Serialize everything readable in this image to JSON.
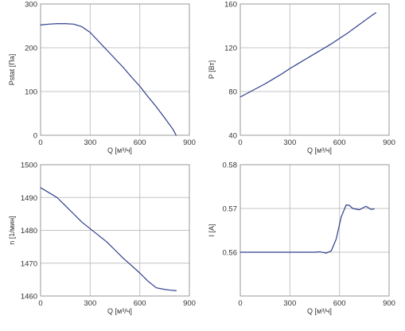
{
  "chart_data": [
    {
      "type": "line",
      "xlabel": "Q [м³/ч]",
      "ylabel": "Pstat [Па]",
      "xlim": [
        0,
        900
      ],
      "ylim": [
        0,
        300
      ],
      "xticks": [
        "0",
        "300",
        "600",
        "900"
      ],
      "yticks": [
        "0",
        "100",
        "200",
        "300"
      ],
      "grid": true,
      "color": "#2f3d8c",
      "series": [
        {
          "x": [
            0,
            50,
            100,
            150,
            200,
            250,
            300,
            350,
            400,
            450,
            500,
            550,
            600,
            650,
            700,
            750,
            800,
            820
          ],
          "y": [
            252,
            254,
            255,
            255,
            254,
            248,
            235,
            215,
            195,
            175,
            155,
            133,
            112,
            88,
            65,
            40,
            14,
            0
          ]
        }
      ]
    },
    {
      "type": "line",
      "xlabel": "Q [м³/ч]",
      "ylabel": "P [Вт]",
      "xlim": [
        0,
        900
      ],
      "ylim": [
        40,
        160
      ],
      "xticks": [
        "0",
        "300",
        "600",
        "900"
      ],
      "yticks": [
        "40",
        "80",
        "120",
        "160"
      ],
      "grid": true,
      "color": "#2f3d8c",
      "series": [
        {
          "x": [
            0,
            50,
            100,
            150,
            200,
            250,
            300,
            350,
            400,
            450,
            500,
            550,
            600,
            650,
            700,
            750,
            800,
            820
          ],
          "y": [
            75,
            79,
            83,
            87,
            91.5,
            96,
            101,
            105.5,
            110,
            114.5,
            119,
            123.5,
            128.5,
            133.5,
            139,
            144.5,
            150,
            152
          ]
        }
      ]
    },
    {
      "type": "line",
      "xlabel": "Q [м³/ч]",
      "ylabel": "n [1/мин]",
      "xlim": [
        0,
        900
      ],
      "ylim": [
        1460,
        1500
      ],
      "xticks": [
        "0",
        "300",
        "600",
        "900"
      ],
      "yticks": [
        "1460",
        "1470",
        "1480",
        "1490",
        "1500"
      ],
      "grid": true,
      "color": "#2f3d8c",
      "series": [
        {
          "x": [
            0,
            50,
            100,
            150,
            200,
            250,
            300,
            350,
            400,
            450,
            500,
            550,
            600,
            650,
            700,
            750,
            780,
            820
          ],
          "y": [
            1493,
            1491.5,
            1490,
            1487.5,
            1485,
            1482.5,
            1480.5,
            1478.5,
            1476.5,
            1474,
            1471.5,
            1469.3,
            1467,
            1464.5,
            1462.5,
            1462,
            1461.8,
            1461.6
          ]
        }
      ]
    },
    {
      "type": "line",
      "xlabel": "Q [м³/ч]",
      "ylabel": "I [A]",
      "xlim": [
        0,
        900
      ],
      "ylim": [
        0.55,
        0.58
      ],
      "xticks": [
        "0",
        "300",
        "600",
        "900"
      ],
      "yticks": [
        "",
        "0.56",
        "0.57",
        "0.58"
      ],
      "grid": true,
      "color": "#2f3d8c",
      "series": [
        {
          "x": [
            0,
            50,
            100,
            150,
            200,
            250,
            300,
            350,
            400,
            450,
            480,
            520,
            550,
            580,
            610,
            640,
            660,
            680,
            720,
            760,
            790,
            810
          ],
          "y": [
            0.56,
            0.56,
            0.56,
            0.56,
            0.56,
            0.56,
            0.56,
            0.56,
            0.56,
            0.56,
            0.5601,
            0.5598,
            0.5603,
            0.563,
            0.568,
            0.5708,
            0.5707,
            0.57,
            0.5697,
            0.5705,
            0.5698,
            0.5699
          ]
        }
      ]
    }
  ]
}
